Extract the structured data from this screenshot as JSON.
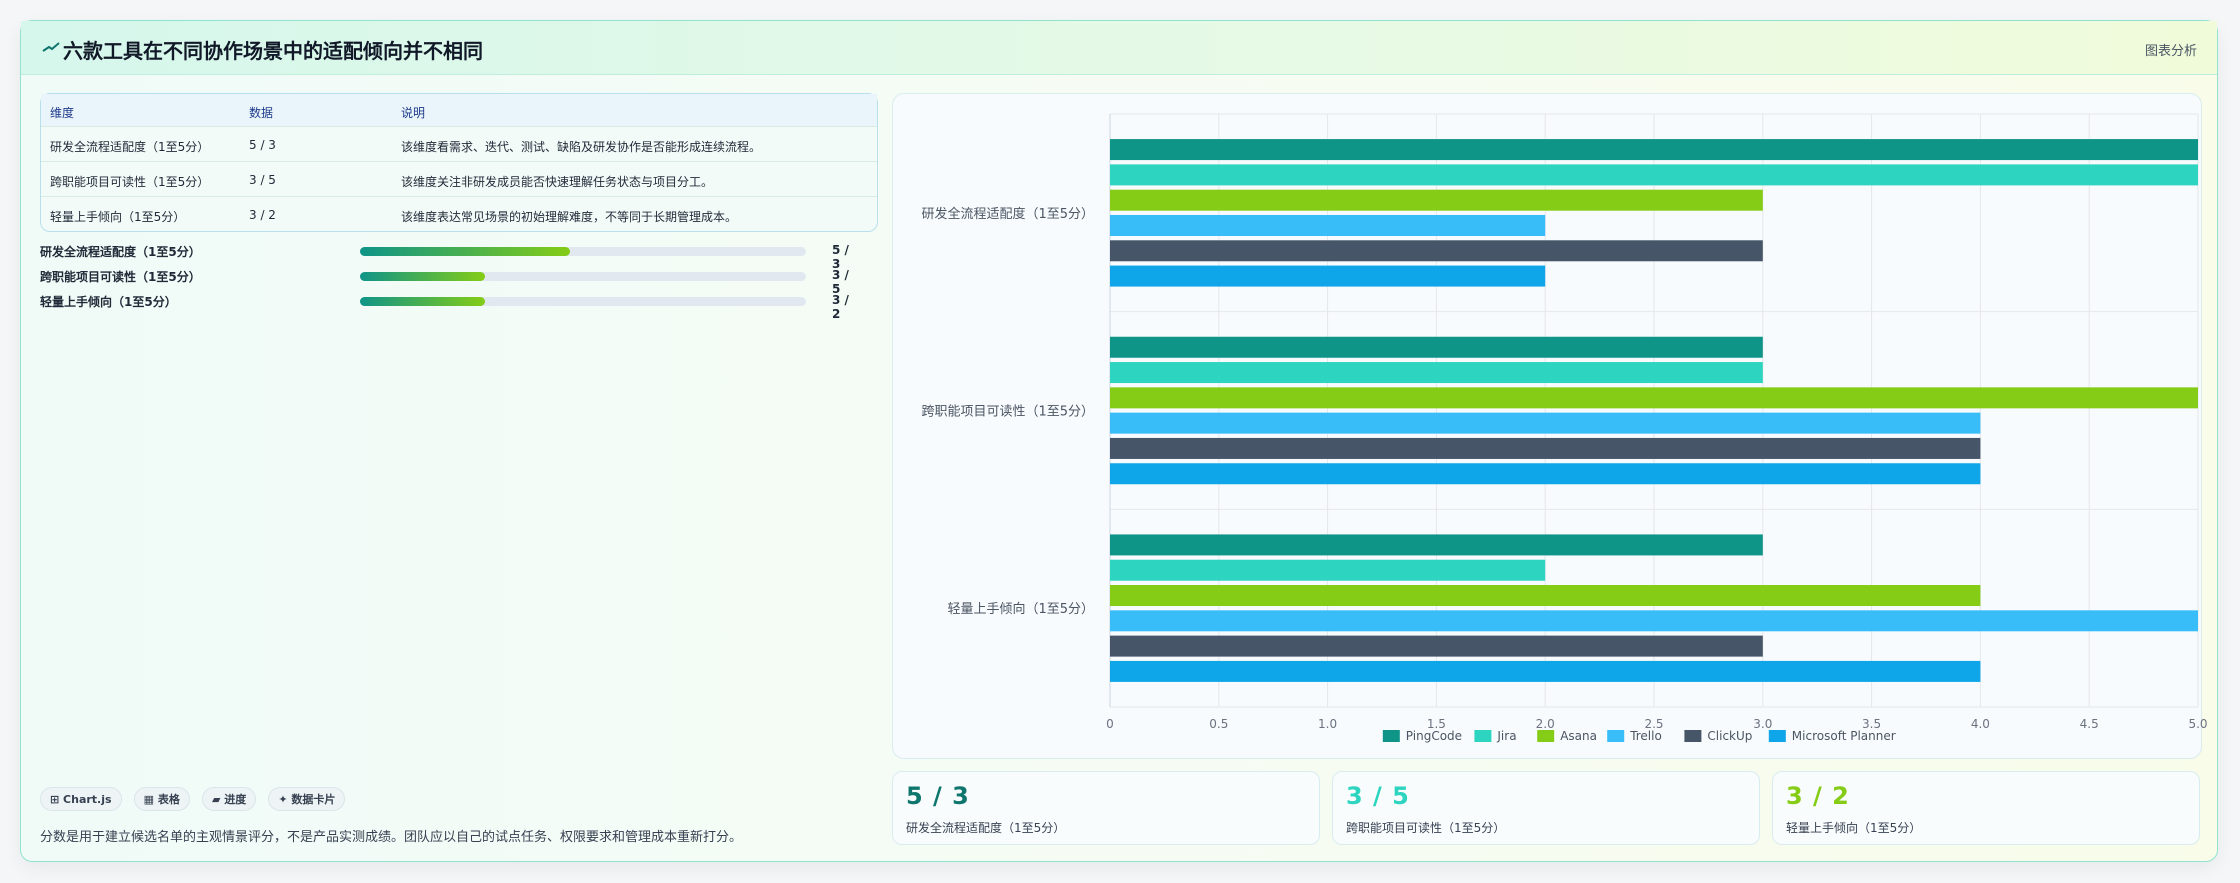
{
  "header": {
    "title": "六款工具在不同协作场景中的适配倾向并不相同",
    "right_label": "图表分析"
  },
  "table": {
    "headers": [
      "维度",
      "数据",
      "说明"
    ],
    "rows": [
      [
        "研发全流程适配度（1至5分）",
        "5 / 3",
        "该维度看需求、迭代、测试、缺陷及研发协作是否能形成连续流程。"
      ],
      [
        "跨职能项目可读性（1至5分）",
        "3 / 5",
        "该维度关注非研发成员能否快速理解任务状态与项目分工。"
      ],
      [
        "轻量上手倾向（1至5分）",
        "3 / 2",
        "该维度表达常见场景的初始理解难度，不等同于长期管理成本。"
      ]
    ]
  },
  "progress": [
    {
      "label": "研发全流程适配度（1至5分）",
      "value_text": "5 / 3",
      "fraction": 0.47
    },
    {
      "label": "跨职能项目可读性（1至5分）",
      "value_text": "3 / 5",
      "fraction": 0.28
    },
    {
      "label": "轻量上手倾向（1至5分）",
      "value_text": "3 / 2",
      "fraction": 0.28
    }
  ],
  "chips": [
    "⊞ Chart.js",
    "▦ 表格",
    "▰ 进度",
    "✦ 数据卡片"
  ],
  "footnote": "分数是用于建立候选名单的主观情景评分，不是产品实测成绩。团队应以自己的试点任务、权限要求和管理成本重新打分。",
  "stats": [
    {
      "value": "5 / 3",
      "caption": "研发全流程适配度（1至5分）",
      "color": "#0f766e"
    },
    {
      "value": "3 / 5",
      "caption": "跨职能项目可读性（1至5分）",
      "color": "#2dd4bf"
    },
    {
      "value": "3 / 2",
      "caption": "轻量上手倾向（1至5分）",
      "color": "#84cc16"
    }
  ],
  "chart_data": {
    "type": "bar",
    "orientation": "horizontal",
    "categories": [
      "研发全流程适配度（1至5分）",
      "跨职能项目可读性（1至5分）",
      "轻量上手倾向（1至5分）"
    ],
    "series": [
      {
        "name": "PingCode",
        "color": "#0f9488",
        "values": [
          5,
          3,
          3
        ]
      },
      {
        "name": "Jira",
        "color": "#2dd4bf",
        "values": [
          5,
          3,
          2
        ]
      },
      {
        "name": "Asana",
        "color": "#84cc16",
        "values": [
          3,
          5,
          4
        ]
      },
      {
        "name": "Trello",
        "color": "#38bdf8",
        "values": [
          2,
          4,
          5
        ]
      },
      {
        "name": "ClickUp",
        "color": "#475569",
        "values": [
          3,
          4,
          3
        ]
      },
      {
        "name": "Microsoft Planner",
        "color": "#0ea5e9",
        "values": [
          2,
          4,
          4
        ]
      }
    ],
    "xlim": [
      0,
      5
    ],
    "xticks": [
      "0",
      "0.5",
      "1.0",
      "1.5",
      "2.0",
      "2.5",
      "3.0",
      "3.5",
      "4.0",
      "4.5",
      "5.0"
    ],
    "grid": true,
    "legend": "bottom-center"
  }
}
